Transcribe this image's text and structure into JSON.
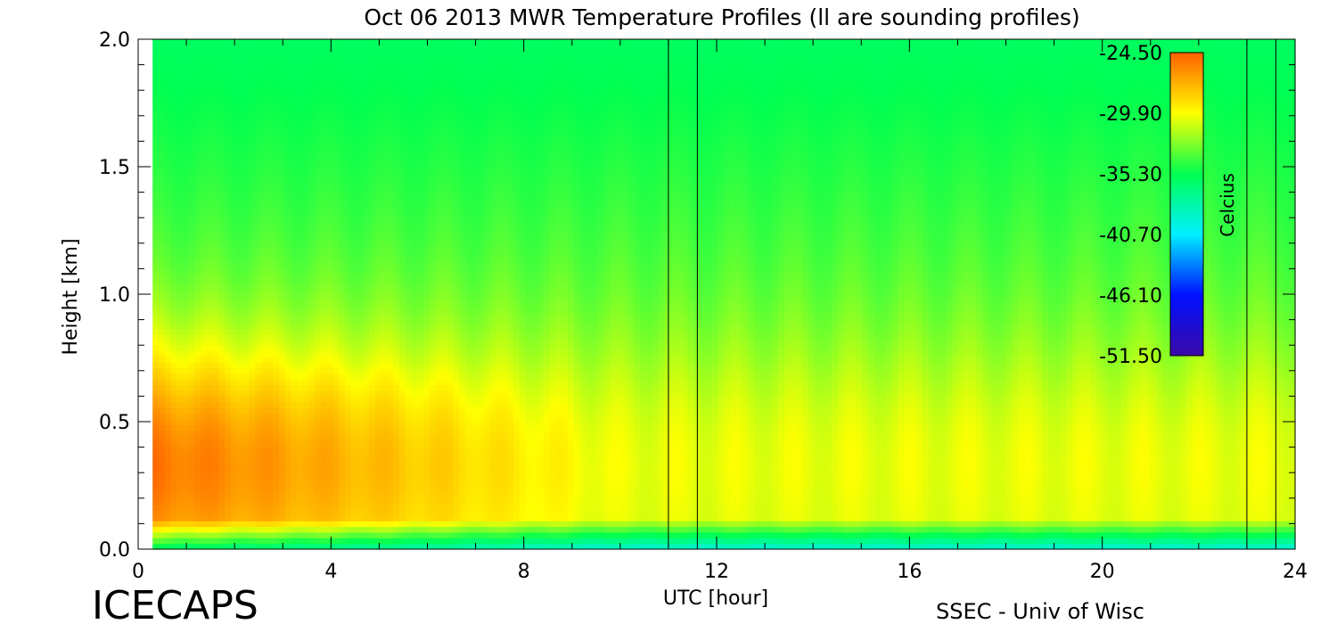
{
  "chart_data": {
    "type": "heatmap",
    "title": "Oct 06 2013 MWR Temperature Profiles (ll are sounding profiles)",
    "xlabel": "UTC [hour]",
    "ylabel": "Height [km]",
    "xlim": [
      0,
      24
    ],
    "ylim": [
      0,
      2.0
    ],
    "x_ticks": [
      0,
      4,
      8,
      12,
      16,
      20,
      24
    ],
    "x_tick_labels": [
      "0",
      "4",
      "8",
      "12",
      "16",
      "20",
      "24"
    ],
    "y_ticks": [
      0,
      0.5,
      1.0,
      1.5,
      2.0
    ],
    "y_tick_labels": [
      "0.0",
      "0.5",
      "1.0",
      "1.5",
      "2.0"
    ],
    "data_x_range": [
      0.3,
      24
    ],
    "sounding_times": [
      11.0,
      11.6,
      23.0,
      23.6
    ],
    "colorbar": {
      "label": "Celcius",
      "ticks": [
        "-24.50",
        "-29.90",
        "-35.30",
        "-40.70",
        "-46.10",
        "-51.50"
      ],
      "tick_values": [
        -24.5,
        -29.9,
        -35.3,
        -40.7,
        -46.1,
        -51.5
      ],
      "range": [
        -51.5,
        -24.5
      ],
      "colors": [
        "#3a0aa8",
        "#0010ff",
        "#00f0ff",
        "#00ff50",
        "#ffff00",
        "#ff6000"
      ]
    }
  },
  "annotations": {
    "left_footer": "ICECAPS",
    "right_footer": "SSEC - Univ of Wisc"
  }
}
